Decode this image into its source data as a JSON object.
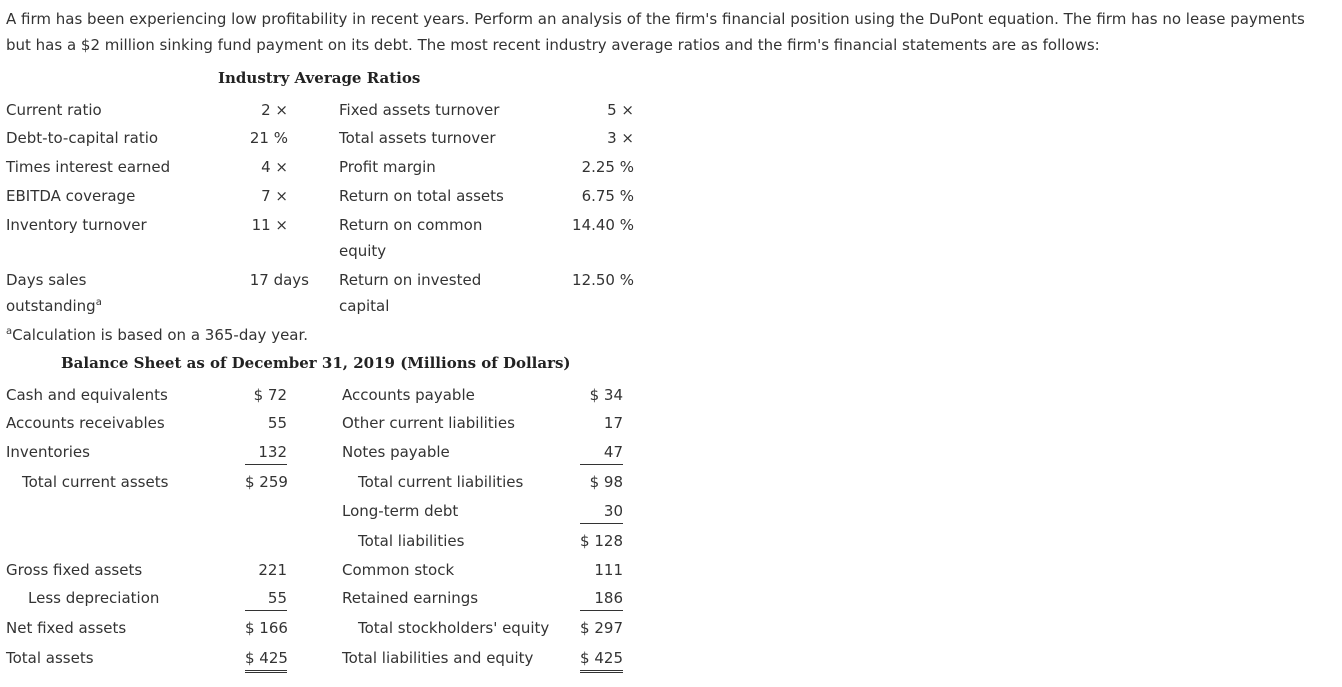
{
  "intro": "A firm has been experiencing low profitability in recent years. Perform an analysis of the firm's financial position using the DuPont equation. The firm has no lease payments but has a $2 million sinking fund payment on its debt. The most recent industry average ratios and the firm's financial statements are as follows:",
  "ratios": {
    "title": "Industry Average Ratios",
    "left": [
      {
        "label": "Current ratio",
        "value": "2 ×"
      },
      {
        "label": "Debt-to-capital ratio",
        "value": "21 %"
      },
      {
        "label": "Times interest earned",
        "value": "4 ×"
      },
      {
        "label": "EBITDA coverage",
        "value": "7 ×"
      },
      {
        "label": "Inventory turnover",
        "value": "11 ×"
      },
      {
        "label_1": "Days sales",
        "label_2": "outstanding",
        "sup": "a",
        "value": "17 days"
      }
    ],
    "right": [
      {
        "label": "Fixed assets turnover",
        "value": "5 ×"
      },
      {
        "label": "Total assets turnover",
        "value": "3 ×"
      },
      {
        "label": "Profit margin",
        "value": "2.25 %"
      },
      {
        "label": "Return on total assets",
        "value": "6.75 %"
      },
      {
        "label_1": "Return on common",
        "label_2": "equity",
        "value": "14.40 %"
      },
      {
        "label_1": "Return on invested",
        "label_2": "capital",
        "value": "12.50 %"
      }
    ],
    "footnote_sup": "a",
    "footnote": "Calculation is based on a 365-day year."
  },
  "balance_sheet": {
    "title": "Balance Sheet as of December 31, 2019 (Millions of Dollars)",
    "assets": [
      {
        "label": "Cash and equivalents",
        "value": "$ 72"
      },
      {
        "label": "Accounts receivables",
        "value": "55"
      },
      {
        "label": "Inventories",
        "value": "132"
      },
      {
        "label": "Total current assets",
        "value": "$ 259"
      },
      {
        "label": "Gross fixed assets",
        "value": "221"
      },
      {
        "label": "Less depreciation",
        "value": "55"
      },
      {
        "label": "Net fixed assets",
        "value": "$ 166"
      },
      {
        "label": "Total assets",
        "value": "$ 425"
      }
    ],
    "liabilities": [
      {
        "label": "Accounts payable",
        "value": "$ 34"
      },
      {
        "label": "Other current liabilities",
        "value": "17"
      },
      {
        "label": "Notes payable",
        "value": "47"
      },
      {
        "label": "Total current liabilities",
        "value": "$ 98"
      },
      {
        "label": "Long-term debt",
        "value": "30"
      },
      {
        "label": "Total liabilities",
        "value": "$ 128"
      },
      {
        "label": "Common stock",
        "value": "111"
      },
      {
        "label": "Retained earnings",
        "value": "186"
      },
      {
        "label": "Total stockholders' equity",
        "value": "$ 297"
      },
      {
        "label": "Total liabilities and equity",
        "value": "$ 425"
      }
    ]
  }
}
